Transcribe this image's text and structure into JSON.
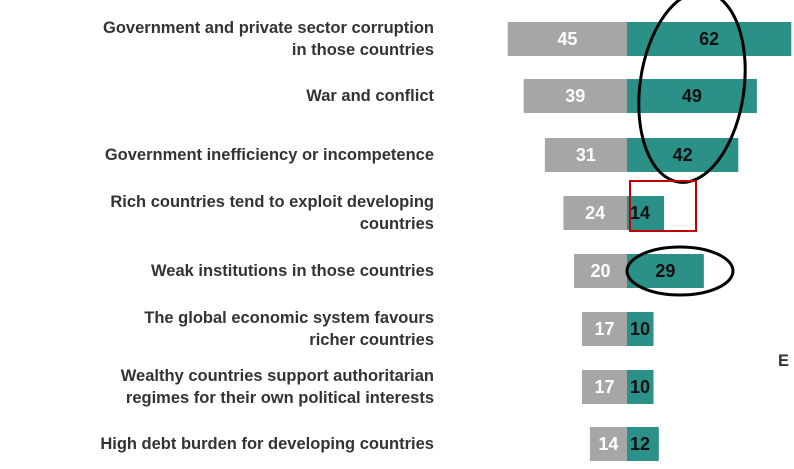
{
  "chart_data": {
    "type": "bar",
    "categories": [
      "Government and private sector corruption in those countries",
      "War and conflict",
      "Government inefficiency or incompetence",
      "Rich countries tend to exploit developing countries",
      "Weak institutions in those countries",
      "The global economic system favours richer countries",
      "Wealthy countries support authoritarian regimes for their own political interests",
      "High debt burden for developing countries"
    ],
    "category_lines": [
      [
        "Government and private sector corruption",
        "in those countries"
      ],
      [
        "War and conflict"
      ],
      [
        "Government inefficiency or incompetence"
      ],
      [
        "Rich countries tend to exploit developing",
        "countries"
      ],
      [
        "Weak institutions in those countries"
      ],
      [
        "The global economic system favours",
        "richer countries"
      ],
      [
        "Wealthy countries support authoritarian",
        "regimes for their own political interests"
      ],
      [
        "High debt burden for developing countries"
      ]
    ],
    "series": [
      {
        "values": [
          45,
          39,
          31,
          24,
          20,
          17,
          17,
          14
        ],
        "color": "#a6a6a6",
        "direction": "left"
      },
      {
        "values": [
          62,
          49,
          42,
          14,
          29,
          10,
          10,
          12
        ],
        "color": "#2a9088",
        "direction": "right"
      }
    ],
    "annotations": [
      {
        "type": "ellipse",
        "color": "#000000",
        "categories": [
          0,
          1,
          2
        ],
        "series": 1
      },
      {
        "type": "rectangle",
        "color": "#c00000",
        "categories": [
          3
        ],
        "series": 1
      },
      {
        "type": "ellipse",
        "color": "#000000",
        "categories": [
          4
        ],
        "series": 1
      }
    ],
    "edge_label": "E"
  },
  "colors": {
    "left_series": "#a6a6a6",
    "right_series": "#2a9088",
    "left_value_text": "#ffffff",
    "right_value_text": "#111111",
    "category_text": "#333333"
  }
}
